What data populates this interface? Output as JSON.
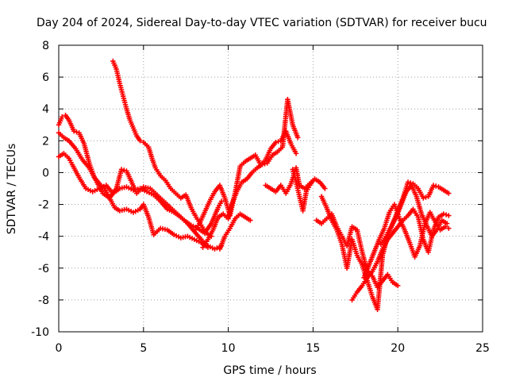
{
  "chart_data": {
    "type": "scatter",
    "title": "Day 204 of 2024, Sidereal Day-to-day VTEC variation (SDTVAR) for receiver bucu",
    "xlabel": "GPS time / hours",
    "ylabel": "SDTVAR / TECUs",
    "xlim": [
      0,
      25
    ],
    "ylim": [
      -10,
      8
    ],
    "xticks": [
      0,
      5,
      10,
      15,
      20,
      25
    ],
    "yticks": [
      -10,
      -8,
      -6,
      -4,
      -2,
      0,
      2,
      4,
      6,
      8
    ],
    "grid": true,
    "marker": "plus",
    "color": "#ff0000",
    "series": [
      {
        "name": "track-1",
        "x": [
          0,
          0.3,
          0.6,
          0.8,
          1.2,
          1.6,
          2.0,
          2.4,
          2.8,
          3.2,
          3.6,
          4.0,
          4.4,
          4.8,
          5.2,
          5.6,
          6.0,
          6.4,
          6.8,
          7.2,
          7.6,
          8.0,
          8.4,
          8.8,
          9.2,
          9.6
        ],
        "y": [
          1.0,
          1.2,
          0.9,
          0.5,
          -0.3,
          -1.0,
          -1.2,
          -1.0,
          -0.8,
          -1.3,
          -1.0,
          -0.9,
          -1.1,
          -1.0,
          -1.2,
          -1.4,
          -1.8,
          -2.3,
          -2.5,
          -2.8,
          -3.2,
          -3.7,
          -4.2,
          -4.6,
          -4.8,
          -4.6
        ]
      },
      {
        "name": "track-2",
        "x": [
          0,
          0.2,
          0.4,
          0.6,
          0.9,
          1.2,
          1.5,
          1.8,
          2.1,
          2.4,
          2.7,
          3.0,
          3.3,
          3.6,
          4.0,
          4.4,
          4.8,
          5.0,
          5.3,
          5.6,
          6.0,
          6.4,
          6.8,
          7.2,
          7.6,
          8.0,
          8.4,
          8.8
        ],
        "y": [
          3.0,
          3.5,
          3.6,
          3.3,
          2.6,
          2.5,
          1.8,
          0.6,
          -0.3,
          -0.7,
          -1.0,
          -1.6,
          -2.2,
          -2.4,
          -2.3,
          -2.5,
          -2.3,
          -2.0,
          -2.8,
          -3.9,
          -3.5,
          -3.6,
          -3.9,
          -4.1,
          -4.0,
          -4.2,
          -4.4,
          -4.7
        ]
      },
      {
        "name": "track-3",
        "x": [
          0,
          0.3,
          0.6,
          1.0,
          1.4,
          1.8,
          2.2,
          2.6,
          3.0,
          3.4,
          3.7,
          4.0,
          4.3,
          4.6,
          5.0,
          5.4,
          5.8,
          6.2,
          6.6,
          7.0,
          7.4,
          7.8,
          8.2,
          8.6,
          9.0,
          9.4,
          9.6
        ],
        "y": [
          2.5,
          2.2,
          2.0,
          1.5,
          0.8,
          0.3,
          -0.5,
          -1.3,
          -1.6,
          -1.0,
          0.2,
          0.1,
          -0.6,
          -1.3,
          -0.9,
          -1.0,
          -1.4,
          -1.8,
          -2.2,
          -2.6,
          -3.0,
          -3.3,
          -3.5,
          -3.8,
          -3.2,
          -2.2,
          -1.8
        ]
      },
      {
        "name": "track-4",
        "x": [
          3.2,
          3.4,
          3.6,
          3.8,
          4.0,
          4.2,
          4.4,
          4.6,
          4.8,
          5.0,
          5.3,
          5.5,
          5.7,
          6.0,
          6.3,
          6.6,
          6.9,
          7.2,
          7.5,
          7.8,
          8.1,
          8.4,
          8.7,
          9.0
        ],
        "y": [
          7.0,
          6.5,
          5.6,
          4.8,
          4.0,
          3.3,
          2.8,
          2.3,
          2.0,
          1.9,
          1.6,
          0.9,
          0.3,
          -0.2,
          -0.5,
          -1.0,
          -1.3,
          -1.6,
          -1.4,
          -2.2,
          -2.8,
          -3.3,
          -3.8,
          -4.0
        ]
      },
      {
        "name": "track-5",
        "x": [
          8.0,
          8.3,
          8.6,
          8.9,
          9.2,
          9.5,
          9.8,
          10.1,
          10.4,
          10.7,
          11.0,
          11.3,
          11.6,
          11.9,
          12.2,
          12.5,
          12.8,
          13.1,
          13.4,
          13.7,
          14.0
        ],
        "y": [
          -3.7,
          -3.2,
          -2.5,
          -1.8,
          -1.2,
          -0.8,
          -1.6,
          -2.7,
          -1.3,
          0.4,
          0.7,
          0.9,
          1.1,
          0.5,
          0.8,
          1.5,
          1.9,
          2.0,
          2.6,
          1.8,
          1.2
        ]
      },
      {
        "name": "track-6",
        "x": [
          8.5,
          8.8,
          9.1,
          9.4,
          9.7,
          10.0,
          10.2,
          10.5,
          10.8,
          11.1,
          11.4,
          11.7,
          12.0,
          12.3,
          12.6,
          12.9,
          13.2,
          13.5,
          13.8,
          14.1
        ],
        "y": [
          -4.7,
          -4.2,
          -3.6,
          -2.8,
          -2.6,
          -2.9,
          -2.0,
          -1.2,
          -0.6,
          -0.4,
          0.0,
          0.3,
          0.5,
          0.6,
          1.1,
          1.3,
          1.6,
          4.6,
          3.0,
          2.2
        ]
      },
      {
        "name": "track-7",
        "x": [
          9.5,
          9.8,
          10.1,
          10.4,
          10.7,
          11.0,
          11.3
        ],
        "y": [
          -4.8,
          -4.0,
          -3.5,
          -2.9,
          -2.6,
          -2.8,
          -3.0
        ]
      },
      {
        "name": "track-8",
        "x": [
          12.2,
          12.5,
          12.8,
          13.1,
          13.4,
          13.7,
          14.0,
          14.2,
          14.5,
          14.8,
          15.1,
          15.4,
          15.7
        ],
        "y": [
          -0.8,
          -1.0,
          -1.2,
          -0.8,
          -1.3,
          -0.7,
          0.3,
          -0.8,
          -1.0,
          -0.7,
          -0.4,
          -0.6,
          -1.0
        ]
      },
      {
        "name": "track-9",
        "x": [
          13.8,
          14.0,
          14.2,
          14.4,
          14.6,
          14.8,
          15.0
        ],
        "y": [
          0.2,
          -0.6,
          -1.5,
          -2.4,
          -1.2,
          -0.8,
          -0.5
        ]
      },
      {
        "name": "track-10",
        "x": [
          15.2,
          15.5,
          15.8,
          16.1,
          16.4,
          16.7,
          17.0,
          17.3,
          17.6,
          17.9,
          18.2,
          18.5,
          18.8,
          19.1,
          19.4,
          19.7,
          20.0
        ],
        "y": [
          -3.0,
          -3.2,
          -2.9,
          -2.6,
          -3.4,
          -4.0,
          -4.6,
          -3.4,
          -3.6,
          -5.0,
          -6.2,
          -6.5,
          -7.2,
          -6.8,
          -6.4,
          -6.9,
          -7.1
        ]
      },
      {
        "name": "track-11",
        "x": [
          15.5,
          15.8,
          16.1,
          16.4,
          16.7,
          17.0,
          17.3,
          17.6,
          17.9,
          18.2,
          18.5,
          18.8,
          19.1,
          19.4,
          19.7,
          20.0,
          20.3,
          20.6,
          20.9,
          21.2,
          21.5,
          21.8,
          22.1,
          22.4,
          22.7,
          23.0
        ],
        "y": [
          -1.5,
          -2.2,
          -3.0,
          -3.6,
          -4.5,
          -6.0,
          -4.2,
          -5.2,
          -5.8,
          -6.8,
          -7.8,
          -8.6,
          -5.2,
          -4.0,
          -3.2,
          -2.4,
          -1.6,
          -0.6,
          -0.7,
          -1.0,
          -1.6,
          -1.5,
          -0.8,
          -0.9,
          -1.1,
          -1.3
        ]
      },
      {
        "name": "track-12",
        "x": [
          17.3,
          17.6,
          17.9,
          18.2,
          18.5,
          18.8,
          19.1,
          19.4,
          19.7,
          20.0,
          20.3,
          20.6,
          20.9,
          21.2,
          21.5,
          21.8,
          22.1,
          22.4,
          22.7,
          23.0
        ],
        "y": [
          -8.0,
          -7.5,
          -7.1,
          -6.6,
          -6.2,
          -5.6,
          -4.8,
          -4.2,
          -3.8,
          -3.4,
          -3.0,
          -2.7,
          -2.3,
          -2.8,
          -4.2,
          -5.0,
          -3.6,
          -2.8,
          -2.6,
          -2.7
        ]
      },
      {
        "name": "track-13",
        "x": [
          18.0,
          18.3,
          18.6,
          18.9,
          19.2,
          19.5,
          19.8,
          20.1,
          20.4,
          20.7,
          21.0,
          21.3,
          21.6,
          21.9,
          22.2,
          22.5,
          22.8,
          23.0
        ],
        "y": [
          -6.6,
          -5.8,
          -5.0,
          -4.2,
          -3.5,
          -2.5,
          -2.0,
          -2.9,
          -3.6,
          -4.4,
          -5.3,
          -4.6,
          -3.2,
          -2.5,
          -3.1,
          -3.6,
          -3.4,
          -3.5
        ]
      },
      {
        "name": "track-14",
        "x": [
          19.0,
          19.3,
          19.6,
          19.9,
          20.2,
          20.5,
          20.8,
          21.1,
          21.4,
          21.7,
          22.0,
          22.3,
          22.6,
          22.9
        ],
        "y": [
          -4.5,
          -4.0,
          -3.4,
          -2.8,
          -2.0,
          -1.2,
          -0.8,
          -1.5,
          -2.6,
          -3.3,
          -4.0,
          -3.6,
          -3.0,
          -3.2
        ]
      }
    ]
  }
}
